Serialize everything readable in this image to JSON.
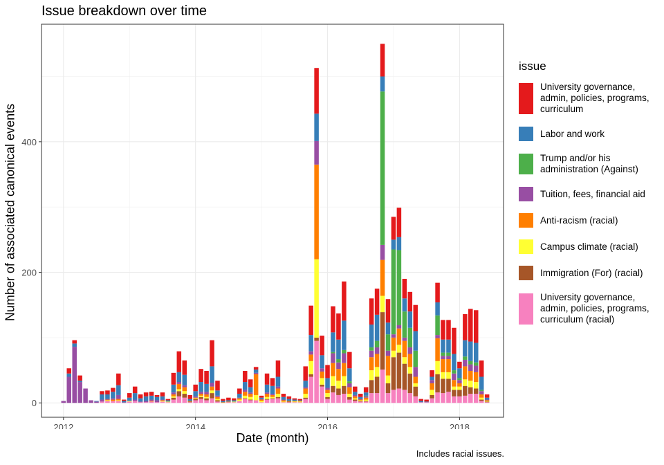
{
  "chart_data": {
    "type": "bar",
    "stacked": true,
    "title": "Issue breakdown over time",
    "xlabel": "Date (month)",
    "ylabel": "Number of associated canonical events",
    "caption": "Includes racial issues.",
    "legend_title": "issue",
    "legend_position": "right",
    "grid": true,
    "x_ticks": [
      "2012",
      "2014",
      "2016",
      "2018"
    ],
    "y_ticks": [
      "0",
      "200",
      "400"
    ],
    "ylim": [
      -22,
      580
    ],
    "xlim": [
      "2011-09",
      "2018-09"
    ],
    "series": [
      {
        "name": "University governance, admin, policies, programs, curriculum",
        "color": "#E41A1C"
      },
      {
        "name": "Labor and work",
        "color": "#377EB8"
      },
      {
        "name": "Trump and/or his administration (Against)",
        "color": "#4DAF4A"
      },
      {
        "name": "Tuition, fees, financial aid",
        "color": "#984EA3"
      },
      {
        "name": "Anti-racism (racial)",
        "color": "#FF7F00"
      },
      {
        "name": "Campus climate (racial)",
        "color": "#FFFF33"
      },
      {
        "name": "Immigration (For) (racial)",
        "color": "#A65628"
      },
      {
        "name": "University governance, admin, policies, programs, curriculum (racial)",
        "color": "#F781BF"
      }
    ],
    "months": [
      {
        "x": "2012-01",
        "v": [
          0,
          0,
          0,
          3,
          0,
          0,
          0,
          0
        ]
      },
      {
        "x": "2012-02",
        "v": [
          8,
          5,
          0,
          40,
          0,
          0,
          0,
          0
        ]
      },
      {
        "x": "2012-03",
        "v": [
          5,
          5,
          0,
          86,
          0,
          0,
          0,
          0
        ]
      },
      {
        "x": "2012-04",
        "v": [
          8,
          2,
          0,
          32,
          0,
          0,
          0,
          0
        ]
      },
      {
        "x": "2012-05",
        "v": [
          0,
          0,
          0,
          22,
          0,
          0,
          0,
          0
        ]
      },
      {
        "x": "2012-06",
        "v": [
          0,
          0,
          0,
          4,
          0,
          0,
          0,
          0
        ]
      },
      {
        "x": "2012-07",
        "v": [
          0,
          1,
          0,
          2,
          0,
          0,
          0,
          0
        ]
      },
      {
        "x": "2012-08",
        "v": [
          5,
          8,
          0,
          3,
          0,
          0,
          0,
          2
        ]
      },
      {
        "x": "2012-09",
        "v": [
          6,
          7,
          0,
          1,
          1,
          1,
          0,
          3
        ]
      },
      {
        "x": "2012-10",
        "v": [
          6,
          10,
          0,
          2,
          2,
          0,
          0,
          3
        ]
      },
      {
        "x": "2012-11",
        "v": [
          18,
          15,
          0,
          6,
          2,
          1,
          0,
          3
        ]
      },
      {
        "x": "2012-12",
        "v": [
          2,
          2,
          0,
          1,
          0,
          0,
          0,
          0
        ]
      },
      {
        "x": "2013-01",
        "v": [
          7,
          5,
          0,
          0,
          0,
          1,
          0,
          2
        ]
      },
      {
        "x": "2013-02",
        "v": [
          10,
          10,
          0,
          2,
          0,
          0,
          0,
          3
        ]
      },
      {
        "x": "2013-03",
        "v": [
          6,
          5,
          0,
          1,
          0,
          0,
          0,
          1
        ]
      },
      {
        "x": "2013-04",
        "v": [
          6,
          7,
          0,
          2,
          0,
          0,
          0,
          1
        ]
      },
      {
        "x": "2013-05",
        "v": [
          6,
          6,
          0,
          2,
          1,
          0,
          0,
          2
        ]
      },
      {
        "x": "2013-06",
        "v": [
          3,
          5,
          0,
          3,
          0,
          0,
          0,
          1
        ]
      },
      {
        "x": "2013-07",
        "v": [
          6,
          5,
          0,
          1,
          1,
          1,
          0,
          2
        ]
      },
      {
        "x": "2013-08",
        "v": [
          2,
          2,
          0,
          0,
          0,
          1,
          0,
          1
        ]
      },
      {
        "x": "2013-09",
        "v": [
          18,
          12,
          0,
          3,
          3,
          2,
          3,
          5
        ]
      },
      {
        "x": "2013-10",
        "v": [
          32,
          15,
          0,
          3,
          8,
          3,
          8,
          10
        ]
      },
      {
        "x": "2013-11",
        "v": [
          22,
          16,
          0,
          3,
          6,
          4,
          6,
          8
        ]
      },
      {
        "x": "2013-12",
        "v": [
          6,
          3,
          0,
          0,
          1,
          0,
          1,
          1
        ]
      },
      {
        "x": "2014-01",
        "v": [
          10,
          8,
          0,
          2,
          1,
          1,
          2,
          4
        ]
      },
      {
        "x": "2014-02",
        "v": [
          20,
          15,
          0,
          3,
          3,
          2,
          3,
          6
        ]
      },
      {
        "x": "2014-03",
        "v": [
          20,
          12,
          0,
          4,
          4,
          2,
          3,
          4
        ]
      },
      {
        "x": "2014-04",
        "v": [
          40,
          25,
          0,
          6,
          6,
          4,
          8,
          7
        ]
      },
      {
        "x": "2014-05",
        "v": [
          15,
          8,
          0,
          2,
          3,
          2,
          2,
          2
        ]
      },
      {
        "x": "2014-06",
        "v": [
          3,
          2,
          0,
          0,
          1,
          0,
          0,
          0
        ]
      },
      {
        "x": "2014-07",
        "v": [
          4,
          2,
          0,
          0,
          1,
          0,
          0,
          1
        ]
      },
      {
        "x": "2014-08",
        "v": [
          3,
          2,
          0,
          0,
          0,
          1,
          0,
          1
        ]
      },
      {
        "x": "2014-09",
        "v": [
          8,
          6,
          0,
          1,
          2,
          2,
          0,
          3
        ]
      },
      {
        "x": "2014-10",
        "v": [
          17,
          12,
          0,
          3,
          6,
          4,
          1,
          6
        ]
      },
      {
        "x": "2014-11",
        "v": [
          12,
          8,
          0,
          2,
          5,
          4,
          1,
          4
        ]
      },
      {
        "x": "2014-12",
        "v": [
          4,
          5,
          0,
          2,
          32,
          8,
          0,
          4
        ]
      },
      {
        "x": "2015-01",
        "v": [
          3,
          2,
          0,
          1,
          2,
          2,
          0,
          1
        ]
      },
      {
        "x": "2015-02",
        "v": [
          17,
          12,
          0,
          2,
          5,
          3,
          1,
          5
        ]
      },
      {
        "x": "2015-03",
        "v": [
          12,
          12,
          0,
          2,
          3,
          2,
          1,
          6
        ]
      },
      {
        "x": "2015-04",
        "v": [
          25,
          15,
          0,
          3,
          8,
          5,
          2,
          7
        ]
      },
      {
        "x": "2015-05",
        "v": [
          5,
          4,
          0,
          1,
          2,
          1,
          0,
          1
        ]
      },
      {
        "x": "2015-06",
        "v": [
          4,
          3,
          0,
          0,
          1,
          0,
          1,
          1
        ]
      },
      {
        "x": "2015-07",
        "v": [
          2,
          2,
          0,
          0,
          1,
          1,
          0,
          1
        ]
      },
      {
        "x": "2015-08",
        "v": [
          2,
          1,
          0,
          0,
          1,
          1,
          0,
          1
        ]
      },
      {
        "x": "2015-09",
        "v": [
          22,
          10,
          0,
          2,
          8,
          6,
          2,
          6
        ]
      },
      {
        "x": "2015-10",
        "v": [
          45,
          25,
          0,
          5,
          10,
          20,
          4,
          40
        ]
      },
      {
        "x": "2015-11",
        "v": [
          70,
          42,
          0,
          36,
          145,
          120,
          5,
          95
        ]
      },
      {
        "x": "2015-12",
        "v": [
          30,
          20,
          0,
          5,
          10,
          10,
          3,
          25
        ]
      },
      {
        "x": "2016-01",
        "v": [
          20,
          15,
          0,
          3,
          5,
          6,
          3,
          6
        ]
      },
      {
        "x": "2016-02",
        "v": [
          40,
          30,
          2,
          15,
          20,
          15,
          10,
          16
        ]
      },
      {
        "x": "2016-03",
        "v": [
          40,
          30,
          5,
          10,
          18,
          12,
          10,
          12
        ]
      },
      {
        "x": "2016-04",
        "v": [
          60,
          45,
          5,
          15,
          20,
          15,
          12,
          14
        ]
      },
      {
        "x": "2016-05",
        "v": [
          25,
          20,
          3,
          6,
          10,
          5,
          4,
          5
        ]
      },
      {
        "x": "2016-06",
        "v": [
          8,
          5,
          0,
          2,
          3,
          2,
          2,
          3
        ]
      },
      {
        "x": "2016-07",
        "v": [
          5,
          3,
          0,
          1,
          1,
          1,
          1,
          2
        ]
      },
      {
        "x": "2016-08",
        "v": [
          8,
          5,
          1,
          2,
          3,
          2,
          1,
          2
        ]
      },
      {
        "x": "2016-09",
        "v": [
          40,
          35,
          5,
          10,
          20,
          15,
          20,
          15
        ]
      },
      {
        "x": "2016-10",
        "v": [
          40,
          40,
          10,
          10,
          20,
          15,
          25,
          15
        ]
      },
      {
        "x": "2016-11",
        "v": [
          50,
          23,
          235,
          23,
          55,
          25,
          88,
          51
        ]
      },
      {
        "x": "2016-12",
        "v": [
          36,
          18,
          25,
          8,
          30,
          12,
          15,
          15
        ]
      },
      {
        "x": "2017-01",
        "v": [
          35,
          15,
          130,
          5,
          20,
          10,
          50,
          20
        ]
      },
      {
        "x": "2017-02",
        "v": [
          45,
          20,
          115,
          5,
          25,
          12,
          55,
          22
        ]
      },
      {
        "x": "2017-03",
        "v": [
          30,
          20,
          40,
          5,
          25,
          10,
          40,
          20
        ]
      },
      {
        "x": "2017-04",
        "v": [
          30,
          25,
          30,
          10,
          20,
          10,
          30,
          15
        ]
      },
      {
        "x": "2017-05",
        "v": [
          40,
          30,
          25,
          15,
          10,
          5,
          15,
          10
        ]
      },
      {
        "x": "2017-06",
        "v": [
          3,
          2,
          0,
          0,
          0,
          0,
          0,
          1
        ]
      },
      {
        "x": "2017-07",
        "v": [
          3,
          1,
          0,
          0,
          0,
          0,
          0,
          1
        ]
      },
      {
        "x": "2017-08",
        "v": [
          10,
          5,
          0,
          5,
          10,
          8,
          5,
          7
        ]
      },
      {
        "x": "2017-09",
        "v": [
          30,
          20,
          30,
          5,
          35,
          20,
          28,
          16
        ]
      },
      {
        "x": "2017-10",
        "v": [
          30,
          20,
          5,
          5,
          20,
          10,
          22,
          15
        ]
      },
      {
        "x": "2017-11",
        "v": [
          30,
          20,
          5,
          5,
          20,
          10,
          20,
          17
        ]
      },
      {
        "x": "2017-12",
        "v": [
          40,
          25,
          5,
          10,
          10,
          5,
          10,
          10
        ]
      },
      {
        "x": "2018-01",
        "v": [
          10,
          15,
          3,
          5,
          5,
          5,
          10,
          10
        ]
      },
      {
        "x": "2018-02",
        "v": [
          40,
          25,
          5,
          10,
          20,
          10,
          15,
          11
        ]
      },
      {
        "x": "2018-03",
        "v": [
          50,
          30,
          5,
          10,
          15,
          10,
          10,
          14
        ]
      },
      {
        "x": "2018-04",
        "v": [
          50,
          30,
          5,
          10,
          15,
          10,
          8,
          14
        ]
      },
      {
        "x": "2018-05",
        "v": [
          25,
          20,
          2,
          5,
          5,
          3,
          2,
          3
        ]
      },
      {
        "x": "2018-06",
        "v": [
          5,
          3,
          0,
          1,
          1,
          1,
          1,
          1
        ]
      }
    ]
  }
}
